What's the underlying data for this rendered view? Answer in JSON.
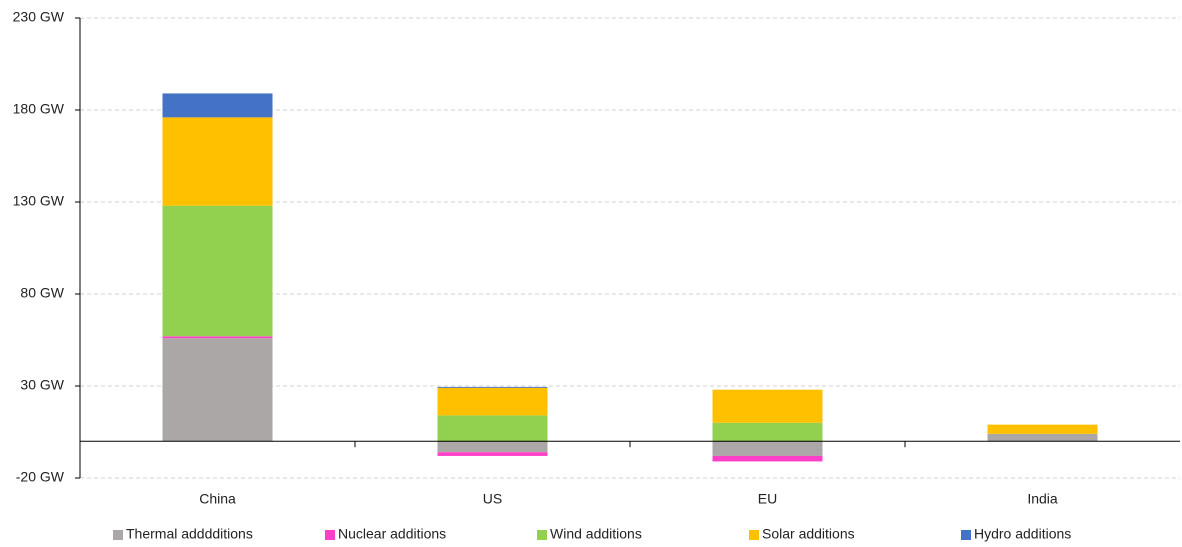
{
  "chart_data": {
    "type": "stacked_bar",
    "categories": [
      "China",
      "US",
      "EU",
      "India"
    ],
    "series": [
      {
        "name": "Thermal adddditions",
        "color": "#aba7a7",
        "values": [
          56,
          -6,
          -8,
          4
        ]
      },
      {
        "name": "Nuclear additions",
        "color": "#ff3fc8",
        "values": [
          1,
          -2,
          -3,
          0
        ]
      },
      {
        "name": "Wind additions",
        "color": "#92d050",
        "values": [
          71,
          14,
          10,
          0
        ]
      },
      {
        "name": "Solar additions",
        "color": "#ffc000",
        "values": [
          48,
          15,
          18,
          5
        ]
      },
      {
        "name": "Hydro additions",
        "color": "#4472c4",
        "values": [
          13,
          0.5,
          0,
          0
        ]
      }
    ],
    "ylim": [
      -20,
      230
    ],
    "yticks": [
      {
        "value": -20,
        "label": "-20 GW"
      },
      {
        "value": 30,
        "label": "30 GW"
      },
      {
        "value": 80,
        "label": "80 GW"
      },
      {
        "value": 130,
        "label": "130 GW"
      },
      {
        "value": 180,
        "label": "180 GW"
      },
      {
        "value": 230,
        "label": "230 GW"
      }
    ],
    "grid": true,
    "legend": "bottom"
  }
}
